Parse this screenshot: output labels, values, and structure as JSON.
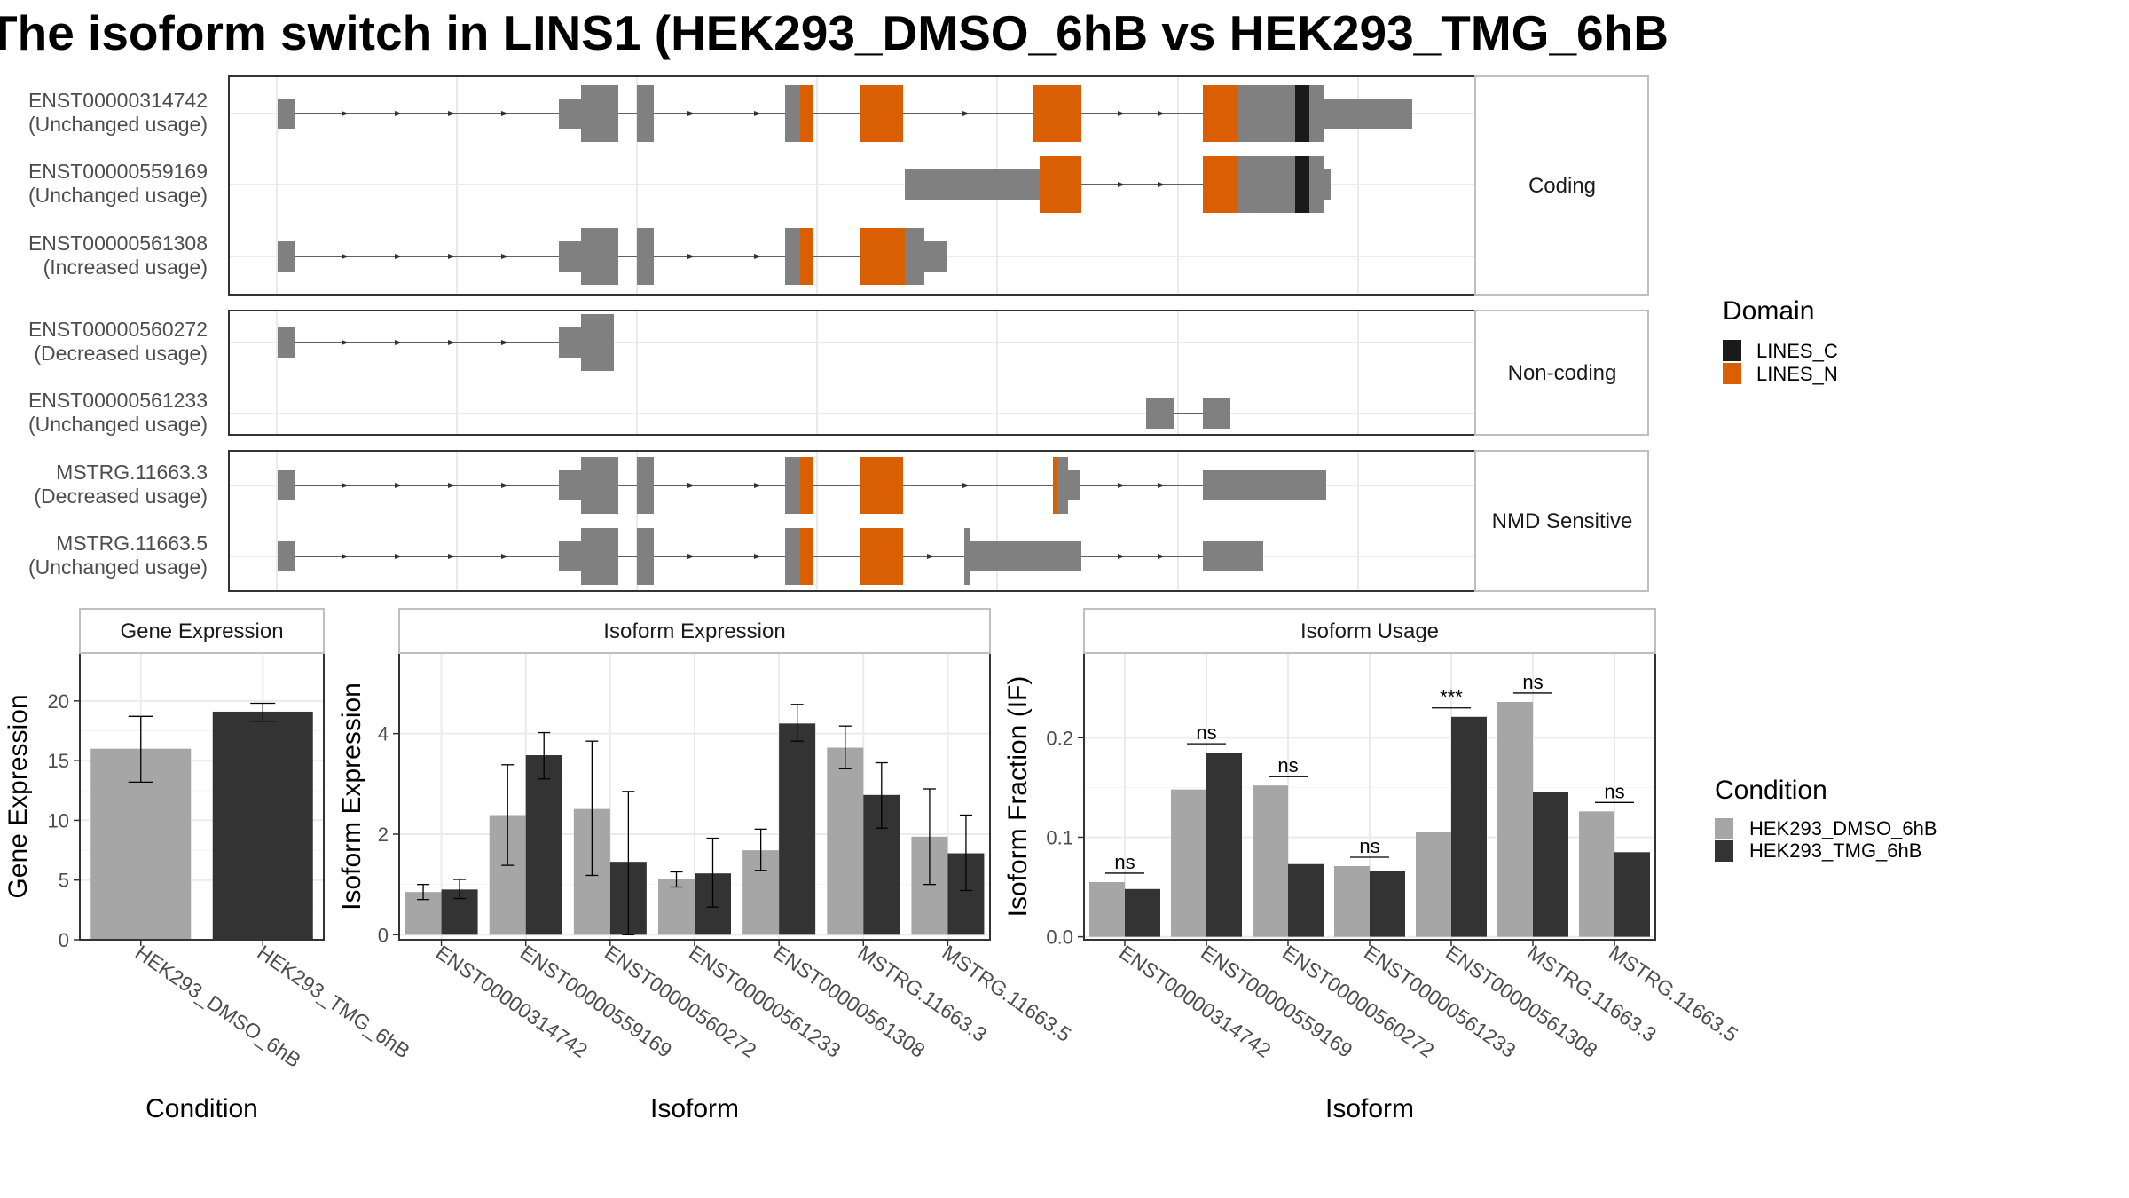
{
  "title": "The isoform switch in LINS1 (HEK293_DMSO_6hB vs HEK293_TMG_6hB",
  "colors": {
    "exon": "#808080",
    "lines_c": "#1a1a1a",
    "lines_n": "#d95f02",
    "dmso": "#a6a6a6",
    "tmg": "#333333",
    "panel_border": "#333333",
    "strip_border": "#bfbfbf",
    "grid": "#ebebeb"
  },
  "structure": {
    "groups": [
      {
        "label": "Coding",
        "isoforms": [
          {
            "id": "ENST00000314742",
            "usage": "(Unchanged usage)"
          },
          {
            "id": "ENST00000559169",
            "usage": "(Unchanged usage)"
          },
          {
            "id": "ENST00000561308",
            "usage": "(Increased usage)"
          }
        ]
      },
      {
        "label": "Non-coding",
        "isoforms": [
          {
            "id": "ENST00000560272",
            "usage": "(Decreased usage)"
          },
          {
            "id": "ENST00000561233",
            "usage": "(Unchanged usage)"
          }
        ]
      },
      {
        "label": "NMD Sensitive",
        "isoforms": [
          {
            "id": "MSTRG.11663.3",
            "usage": "(Decreased usage)"
          },
          {
            "id": "MSTRG.11663.5",
            "usage": "(Unchanged usage)"
          }
        ]
      }
    ],
    "legend": {
      "title": "Domain",
      "items": [
        {
          "label": "LINES_C",
          "color": "#1a1a1a"
        },
        {
          "label": "LINES_N",
          "color": "#d95f02"
        }
      ]
    }
  },
  "chart_data": [
    {
      "type": "bar",
      "title": "Gene Expression",
      "xlabel": "Condition",
      "ylabel": "Gene Expression",
      "categories": [
        "HEK293_DMSO_6hB",
        "HEK293_TMG_6hB"
      ],
      "values": [
        16.0,
        19.1
      ],
      "errors": [
        [
          13.2,
          18.7
        ],
        [
          18.3,
          19.8
        ]
      ],
      "ylim": [
        0,
        24
      ],
      "yticks": [
        0,
        5,
        10,
        15,
        20
      ]
    },
    {
      "type": "bar",
      "title": "Isoform Expression",
      "xlabel": "Isoform",
      "ylabel": "Isoform Expression",
      "categories": [
        "ENST00000314742",
        "ENST00000559169",
        "ENST00000560272",
        "ENST00000561233",
        "ENST00000561308",
        "MSTRG.11663.3",
        "MSTRG.11663.5"
      ],
      "series": [
        {
          "name": "HEK293_DMSO_6hB",
          "values": [
            0.85,
            2.38,
            2.5,
            1.1,
            1.68,
            3.72,
            1.95
          ],
          "errors": [
            [
              0.7,
              1.0
            ],
            [
              1.38,
              3.38
            ],
            [
              1.18,
              3.85
            ],
            [
              0.95,
              1.25
            ],
            [
              1.28,
              2.1
            ],
            [
              3.3,
              4.15
            ],
            [
              1.0,
              2.9
            ]
          ]
        },
        {
          "name": "HEK293_TMG_6hB",
          "values": [
            0.9,
            3.57,
            1.45,
            1.22,
            4.2,
            2.78,
            1.62
          ],
          "errors": [
            [
              0.72,
              1.1
            ],
            [
              3.1,
              4.02
            ],
            [
              0.0,
              2.85
            ],
            [
              0.55,
              1.92
            ],
            [
              3.85,
              4.58
            ],
            [
              2.12,
              3.42
            ],
            [
              0.88,
              2.38
            ]
          ]
        }
      ],
      "ylim": [
        -0.1,
        5.6
      ],
      "yticks": [
        0,
        2,
        4
      ]
    },
    {
      "type": "bar",
      "title": "Isoform Usage",
      "xlabel": "Isoform",
      "ylabel": "Isoform Fraction (IF)",
      "categories": [
        "ENST00000314742",
        "ENST00000559169",
        "ENST00000560272",
        "ENST00000561233",
        "ENST00000561308",
        "MSTRG.11663.3",
        "MSTRG.11663.5"
      ],
      "series": [
        {
          "name": "HEK293_DMSO_6hB",
          "values": [
            0.055,
            0.148,
            0.152,
            0.071,
            0.105,
            0.236,
            0.126
          ]
        },
        {
          "name": "HEK293_TMG_6hB",
          "values": [
            0.048,
            0.185,
            0.073,
            0.066,
            0.221,
            0.145,
            0.085
          ]
        }
      ],
      "annotations": [
        "ns",
        "ns",
        "ns",
        "ns",
        "***",
        "ns",
        "ns"
      ],
      "ylim": [
        -0.003,
        0.285
      ],
      "yticks": [
        0.0,
        0.1,
        0.2
      ],
      "ytick_labels": [
        "0.0",
        "0.1",
        "0.2"
      ],
      "legend_title": "Condition"
    }
  ]
}
